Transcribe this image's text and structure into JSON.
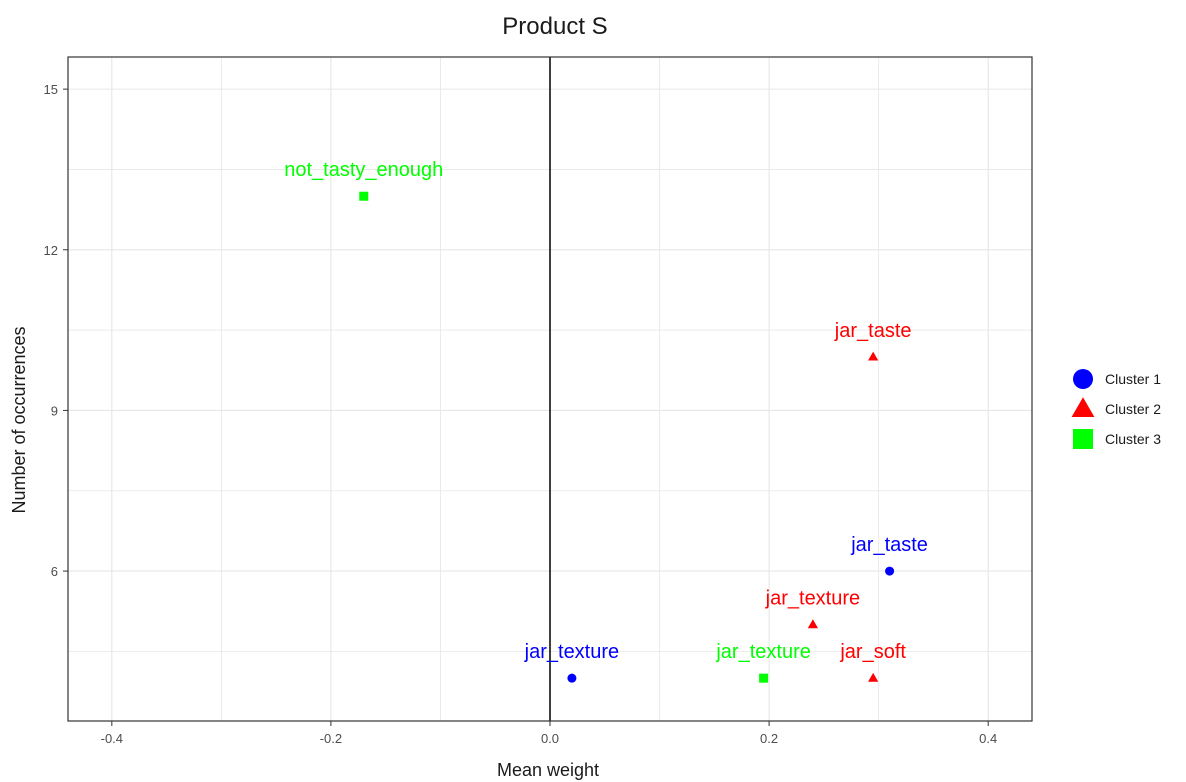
{
  "chart_data": {
    "type": "scatter",
    "title": "Product S",
    "xlabel": "Mean weight",
    "ylabel": "Number of occurrences",
    "xlim": [
      -0.44,
      0.44
    ],
    "ylim": [
      3.2,
      15.6
    ],
    "x_ticks": [
      -0.4,
      -0.2,
      0.0,
      0.2,
      0.4
    ],
    "x_tick_labels": [
      "-0.4",
      "-0.2",
      "0.0",
      "0.2",
      "0.4"
    ],
    "y_ticks": [
      6,
      9,
      12,
      15
    ],
    "y_tick_labels": [
      "6",
      "9",
      "12",
      "15"
    ],
    "grid": true,
    "vline_at_x": 0,
    "legend_position": "right",
    "series": [
      {
        "name": "Cluster 1",
        "color": "#0000ff",
        "marker": "circle",
        "points": [
          {
            "x": 0.31,
            "y": 6,
            "label": "jar_taste"
          },
          {
            "x": 0.02,
            "y": 4,
            "label": "jar_texture"
          }
        ]
      },
      {
        "name": "Cluster 2",
        "color": "#ff0000",
        "marker": "triangle",
        "points": [
          {
            "x": 0.295,
            "y": 10,
            "label": "jar_taste"
          },
          {
            "x": 0.24,
            "y": 5,
            "label": "jar_texture"
          },
          {
            "x": 0.295,
            "y": 4,
            "label": "jar_soft"
          }
        ]
      },
      {
        "name": "Cluster 3",
        "color": "#00ff00",
        "marker": "square",
        "points": [
          {
            "x": -0.17,
            "y": 13,
            "label": "not_tasty_enough"
          },
          {
            "x": 0.195,
            "y": 4,
            "label": "jar_texture"
          }
        ]
      }
    ]
  }
}
